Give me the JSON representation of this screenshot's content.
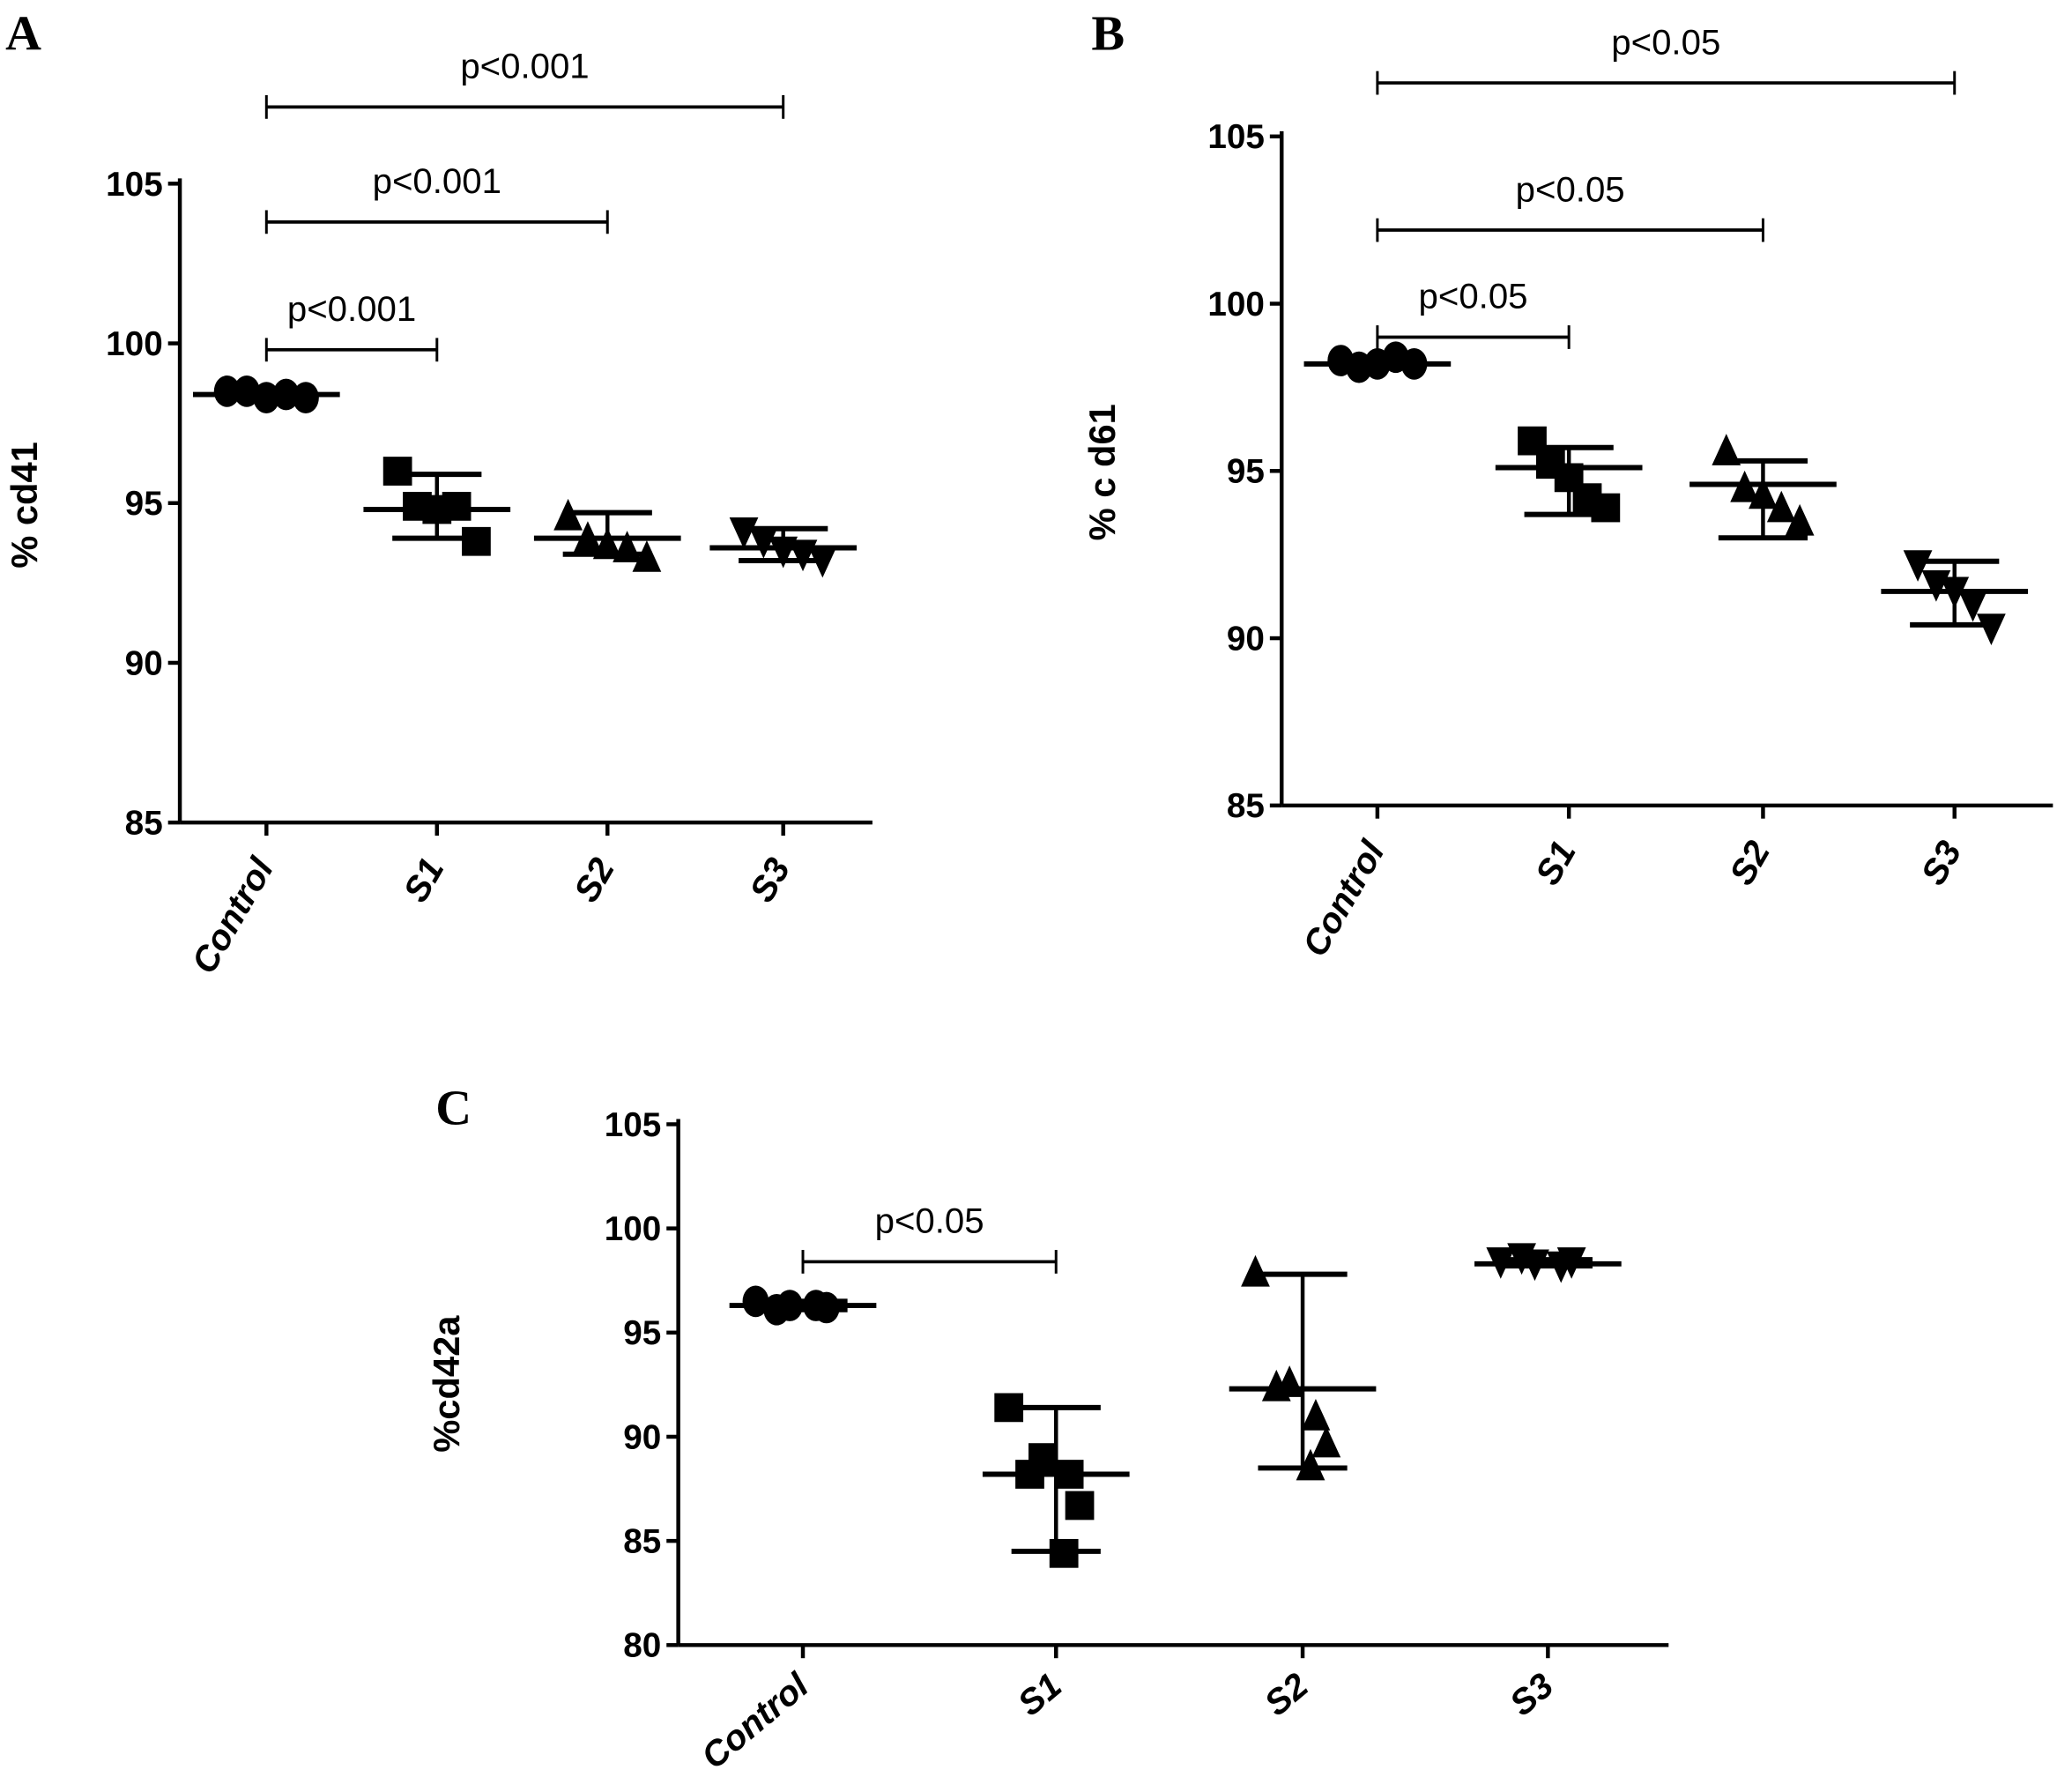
{
  "chart_data": [
    {
      "panel": "A",
      "type": "scatter",
      "ylabel": "% cd41",
      "ylim": [
        85,
        105
      ],
      "yticks": [
        85,
        90,
        95,
        100,
        105
      ],
      "categories": [
        "Control",
        "S1",
        "S2",
        "S3"
      ],
      "markers": [
        "circle",
        "square",
        "triangle",
        "triangle-down"
      ],
      "series": [
        {
          "category": "Control",
          "points": [
            98.5,
            98.5,
            98.3,
            98.4,
            98.3
          ],
          "mean": 98.4,
          "err": [
            98.3,
            98.5
          ]
        },
        {
          "category": "S1",
          "points": [
            96.0,
            94.9,
            94.8,
            94.9,
            93.8
          ],
          "mean": 94.8,
          "err": [
            93.9,
            95.9
          ]
        },
        {
          "category": "S2",
          "points": [
            94.6,
            93.9,
            93.7,
            93.6,
            93.3
          ],
          "mean": 93.9,
          "err": [
            93.4,
            94.7
          ]
        },
        {
          "category": "S3",
          "points": [
            94.1,
            93.8,
            93.5,
            93.4,
            93.2
          ],
          "mean": 93.6,
          "err": [
            93.2,
            94.2
          ]
        }
      ],
      "brackets": [
        {
          "from": "Control",
          "to": "S1",
          "y": 99.8,
          "label": "p<0.001"
        },
        {
          "from": "Control",
          "to": "S2",
          "y": 103.8,
          "label": "p<0.001"
        },
        {
          "from": "Control",
          "to": "S3",
          "y": 107.4,
          "label": "p<0.001"
        }
      ]
    },
    {
      "panel": "B",
      "type": "scatter",
      "ylabel": "% c d61",
      "ylim": [
        85,
        105
      ],
      "yticks": [
        85,
        90,
        95,
        100,
        105
      ],
      "categories": [
        "Control",
        "S1",
        "S2",
        "S3"
      ],
      "markers": [
        "circle",
        "square",
        "triangle",
        "triangle-down"
      ],
      "series": [
        {
          "category": "Control",
          "points": [
            98.3,
            98.1,
            98.2,
            98.4,
            98.2
          ],
          "mean": 98.2,
          "err": [
            98.1,
            98.4
          ]
        },
        {
          "category": "S1",
          "points": [
            95.9,
            95.2,
            94.8,
            94.2,
            93.9
          ],
          "mean": 95.1,
          "err": [
            93.7,
            95.7
          ]
        },
        {
          "category": "S2",
          "points": [
            95.6,
            94.5,
            94.3,
            93.9,
            93.5
          ],
          "mean": 94.6,
          "err": [
            93.0,
            95.3
          ]
        },
        {
          "category": "S3",
          "points": [
            92.2,
            91.6,
            91.4,
            91.0,
            90.3
          ],
          "mean": 91.4,
          "err": [
            90.4,
            92.3
          ]
        }
      ],
      "brackets": [
        {
          "from": "Control",
          "to": "S1",
          "y": 99.0,
          "label": "p<0.05"
        },
        {
          "from": "Control",
          "to": "S2",
          "y": 102.2,
          "label": "p<0.05"
        },
        {
          "from": "Control",
          "to": "S3",
          "y": 106.6,
          "label": "p<0.05"
        }
      ]
    },
    {
      "panel": "C",
      "type": "scatter",
      "ylabel": "%cd42a",
      "ylim": [
        80,
        105
      ],
      "yticks": [
        80,
        85,
        90,
        95,
        100,
        105
      ],
      "categories": [
        "Control",
        "S1",
        "S2",
        "S3"
      ],
      "markers": [
        "circle",
        "square",
        "triangle",
        "triangle-down"
      ],
      "series": [
        {
          "category": "Control",
          "points": [
            96.5,
            96.3,
            96.1,
            96.3,
            96.2
          ],
          "mean": 96.3,
          "err": [
            96.1,
            96.5
          ]
        },
        {
          "category": "S1",
          "points": [
            91.4,
            89.0,
            88.2,
            88.2,
            86.7,
            84.4
          ],
          "mean": 88.2,
          "err": [
            84.5,
            91.4
          ]
        },
        {
          "category": "S2",
          "points": [
            97.9,
            92.6,
            92.4,
            91.0,
            89.7,
            88.6
          ],
          "mean": 92.3,
          "err": [
            88.5,
            97.8
          ]
        },
        {
          "category": "S3",
          "points": [
            98.4,
            98.3,
            98.6,
            98.2,
            98.4
          ],
          "mean": 98.3,
          "err": [
            98.2,
            98.5
          ]
        }
      ],
      "brackets": [
        {
          "from": "Control",
          "to": "S1",
          "y": 98.4,
          "label": "p<0.05"
        }
      ]
    }
  ]
}
